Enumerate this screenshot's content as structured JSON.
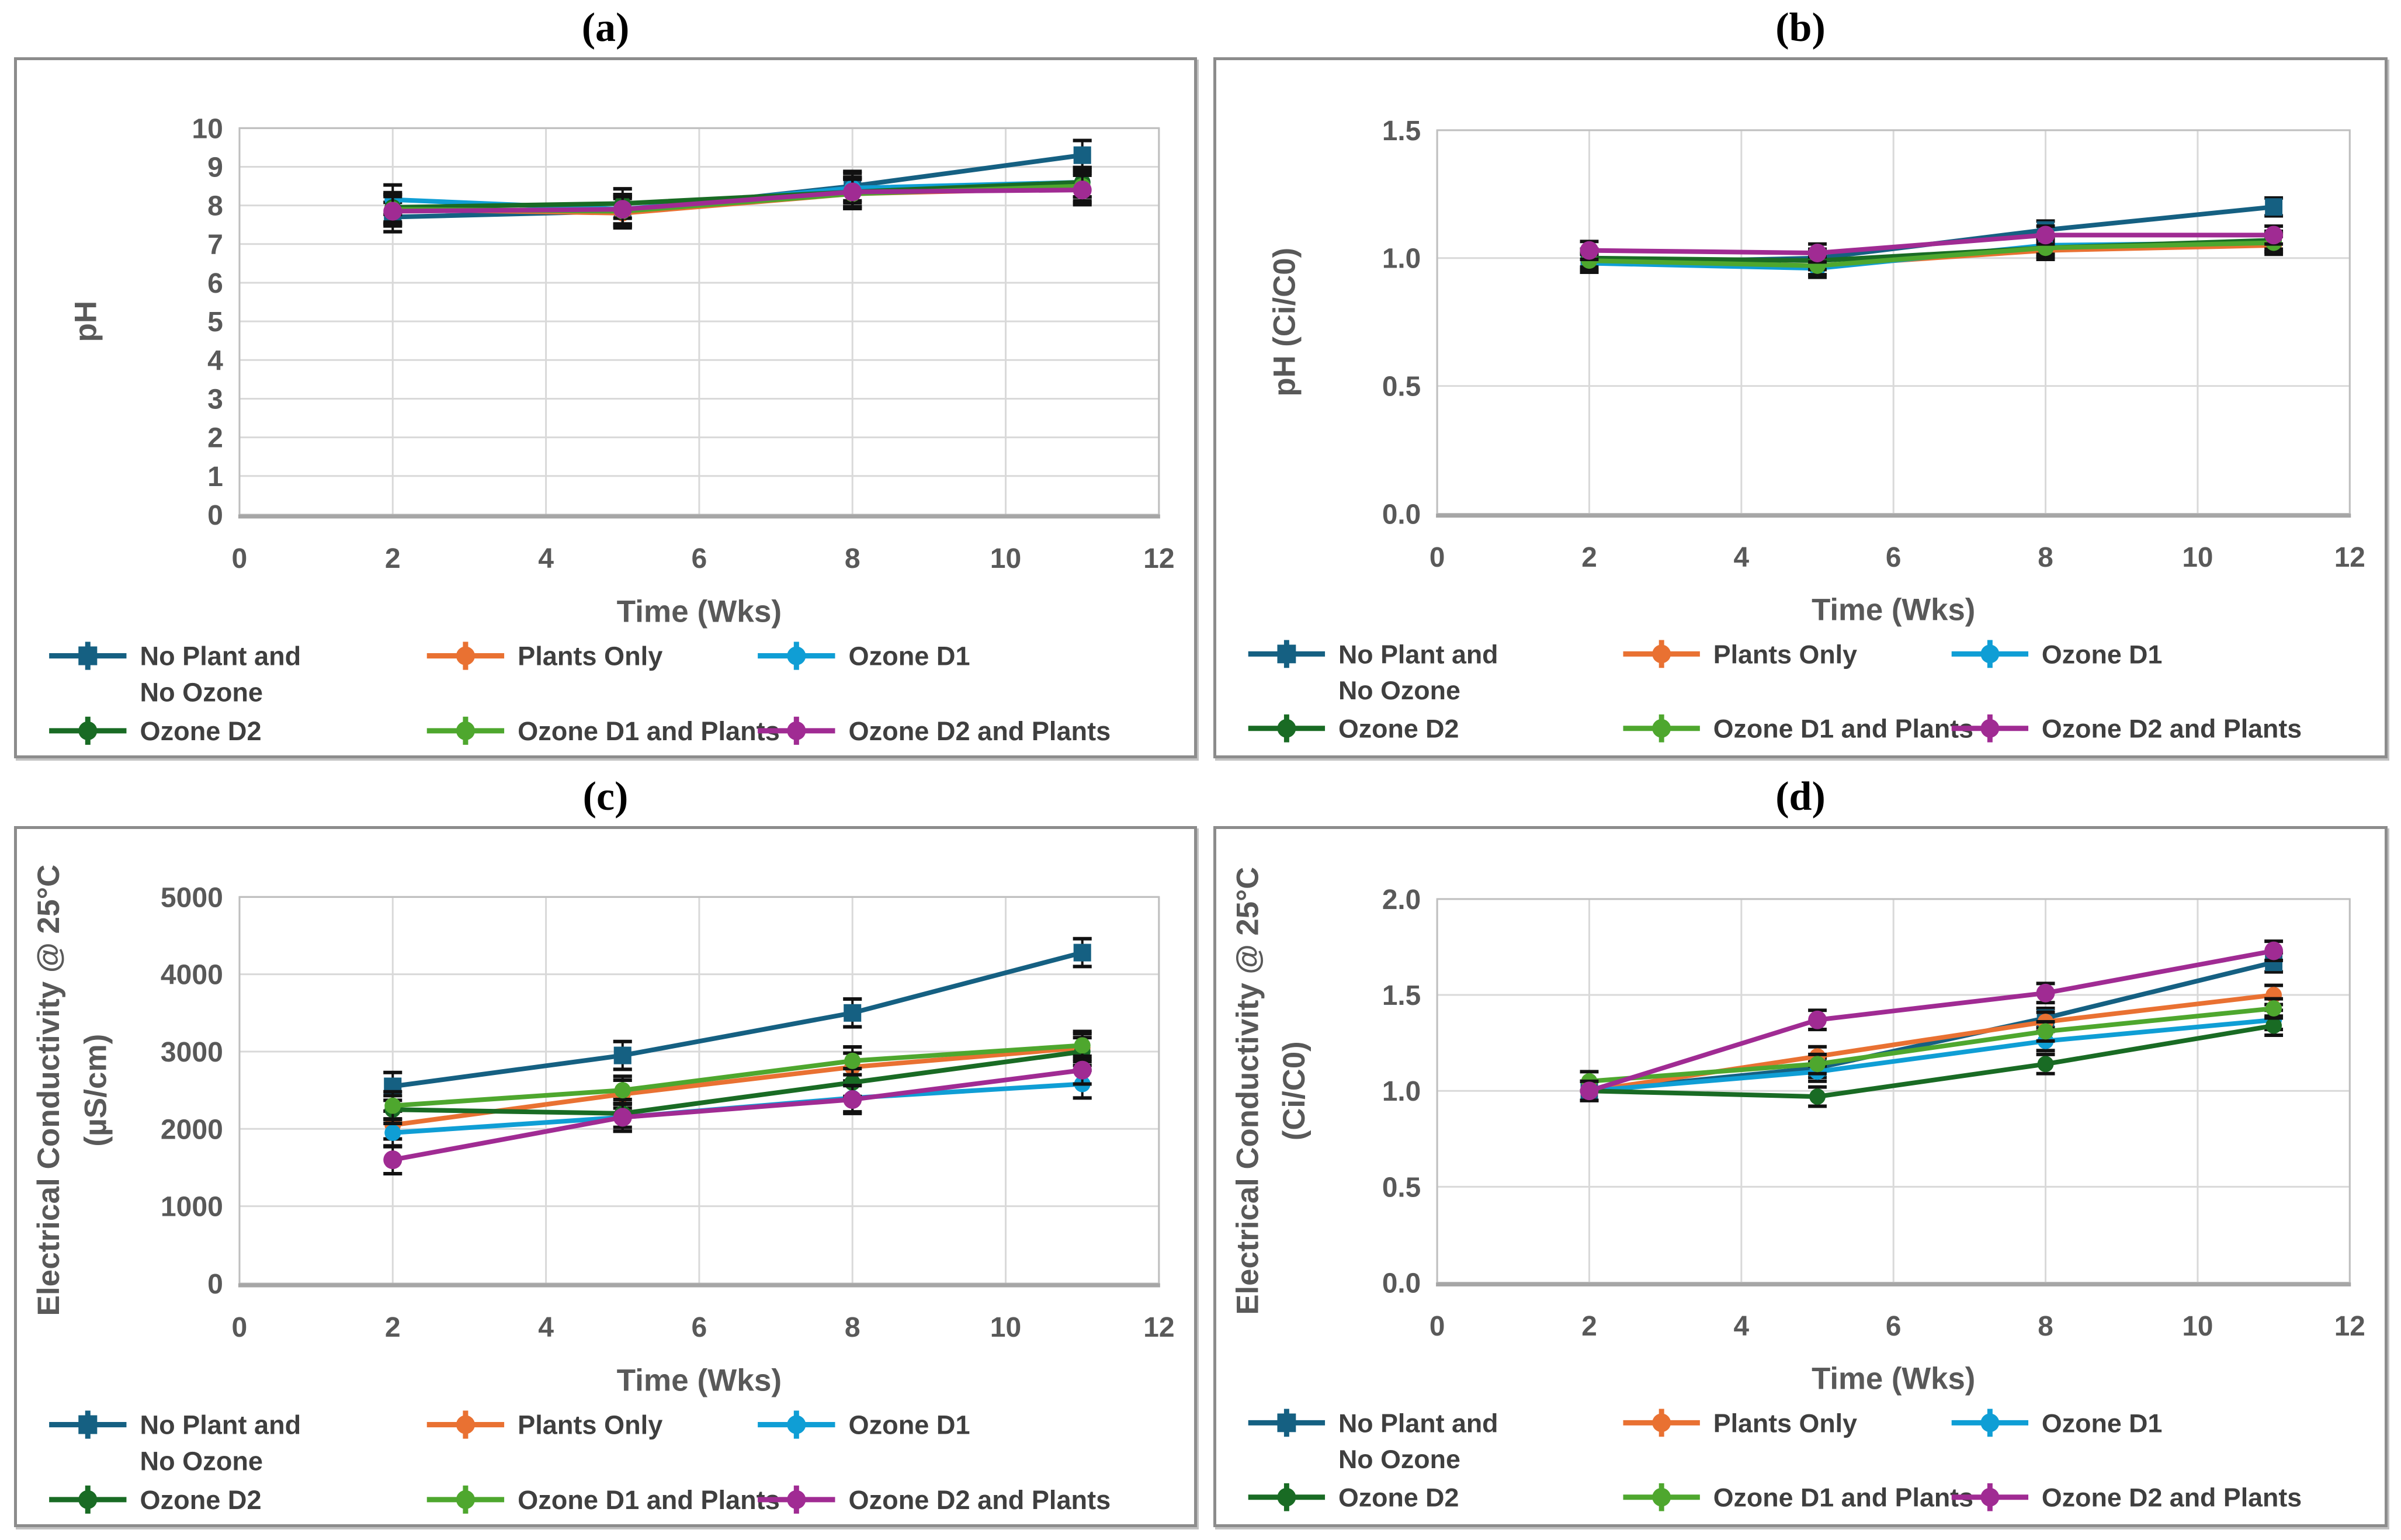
{
  "series_meta": {
    "names": [
      "No Plant and No Ozone",
      "Plants Only",
      "Ozone D1",
      "Ozone D2",
      "Ozone D1 and Plants",
      "Ozone D2 and Plants"
    ],
    "legend_label_lines": [
      [
        "No Plant and",
        "No Ozone"
      ],
      [
        "Plants Only"
      ],
      [
        "Ozone D1"
      ],
      [
        "Ozone D2"
      ],
      [
        "Ozone D1 and Plants"
      ],
      [
        "Ozone D2 and Plants"
      ]
    ],
    "colors": [
      "#156082",
      "#E97132",
      "#0F9ED5",
      "#196B24",
      "#4EA72E",
      "#A02B93"
    ],
    "markers": [
      "square",
      "circle",
      "circle",
      "circle",
      "circle",
      "circle"
    ],
    "legend_rows": [
      [
        0,
        1,
        2
      ],
      [
        3,
        4,
        5
      ]
    ],
    "error_bar_color": "#111111",
    "text_color": "#595959",
    "legend_text_color": "#3f3f3f",
    "gridline_color": "#d9d9d9",
    "plot_border_color": "#bfbfbf",
    "axis_line_color": "#a6a6a6"
  },
  "chart_data": [
    {
      "id": "a",
      "title": "(a)",
      "type": "line",
      "x": [
        2,
        5,
        8,
        11
      ],
      "xlabel": "Time (Wks)",
      "xlim": [
        0,
        12
      ],
      "xticks": [
        0,
        2,
        4,
        6,
        8,
        10,
        12
      ],
      "ylabel": "pH",
      "ylabel_lines": [
        "pH"
      ],
      "ylim": [
        0,
        10
      ],
      "yticks": [
        0,
        1,
        2,
        3,
        4,
        5,
        6,
        7,
        8,
        9,
        10
      ],
      "ytick_decimals": 0,
      "grid": true,
      "legend_position": "bottom",
      "yerr": 0.38,
      "series": [
        {
          "name": "No Plant and No Ozone",
          "values": [
            7.7,
            7.85,
            8.5,
            9.3
          ]
        },
        {
          "name": "Plants Only",
          "values": [
            7.9,
            7.8,
            8.3,
            8.45
          ]
        },
        {
          "name": "Ozone D1",
          "values": [
            8.15,
            7.9,
            8.45,
            8.6
          ]
        },
        {
          "name": "Ozone D2",
          "values": [
            7.95,
            8.05,
            8.35,
            8.6
          ]
        },
        {
          "name": "Ozone D1 and Plants",
          "values": [
            7.9,
            7.85,
            8.3,
            8.5
          ]
        },
        {
          "name": "Ozone D2 and Plants",
          "values": [
            7.85,
            7.9,
            8.35,
            8.4
          ]
        }
      ]
    },
    {
      "id": "b",
      "title": "(b)",
      "type": "line",
      "x": [
        2,
        5,
        8,
        11
      ],
      "xlabel": "Time (Wks)",
      "xlim": [
        0,
        12
      ],
      "xticks": [
        0,
        2,
        4,
        6,
        8,
        10,
        12
      ],
      "ylabel": "pH (Ci/C0)",
      "ylabel_lines": [
        "pH (Ci/C0)"
      ],
      "ylim": [
        0,
        1.5
      ],
      "yticks": [
        0,
        0.5,
        1.0,
        1.5
      ],
      "ytick_decimals": 1,
      "grid": true,
      "legend_position": "bottom",
      "yerr": 0.035,
      "series": [
        {
          "name": "No Plant and No Ozone",
          "values": [
            0.98,
            1.0,
            1.11,
            1.2
          ]
        },
        {
          "name": "Plants Only",
          "values": [
            0.99,
            0.97,
            1.03,
            1.05
          ]
        },
        {
          "name": "Ozone D1",
          "values": [
            0.98,
            0.96,
            1.05,
            1.06
          ]
        },
        {
          "name": "Ozone D2",
          "values": [
            1.0,
            0.99,
            1.04,
            1.07
          ]
        },
        {
          "name": "Ozone D1 and Plants",
          "values": [
            0.99,
            0.97,
            1.04,
            1.06
          ]
        },
        {
          "name": "Ozone D2 and Plants",
          "values": [
            1.03,
            1.02,
            1.09,
            1.09
          ]
        }
      ]
    },
    {
      "id": "c",
      "title": "(c)",
      "type": "line",
      "x": [
        2,
        5,
        8,
        11
      ],
      "xlabel": "Time (Wks)",
      "xlim": [
        0,
        12
      ],
      "xticks": [
        0,
        2,
        4,
        6,
        8,
        10,
        12
      ],
      "ylabel": "Electrical Conductivity @ 25°C (µS/cm)",
      "ylabel_lines": [
        "Electrical Conductivity @ 25°C",
        "(µS/cm)"
      ],
      "ylim": [
        0,
        5000
      ],
      "yticks": [
        0,
        1000,
        2000,
        3000,
        4000,
        5000
      ],
      "ytick_decimals": 0,
      "grid": true,
      "legend_position": "bottom",
      "yerr": 180,
      "series": [
        {
          "name": "No Plant and No Ozone",
          "values": [
            2550,
            2950,
            3500,
            4280
          ]
        },
        {
          "name": "Plants Only",
          "values": [
            2050,
            2450,
            2800,
            3050
          ]
        },
        {
          "name": "Ozone D1",
          "values": [
            1950,
            2150,
            2400,
            2580
          ]
        },
        {
          "name": "Ozone D2",
          "values": [
            2250,
            2200,
            2600,
            3000
          ]
        },
        {
          "name": "Ozone D1 and Plants",
          "values": [
            2300,
            2500,
            2880,
            3080
          ]
        },
        {
          "name": "Ozone D2 and Plants",
          "values": [
            1600,
            2150,
            2380,
            2760
          ]
        }
      ]
    },
    {
      "id": "d",
      "title": "(d)",
      "type": "line",
      "x": [
        2,
        5,
        8,
        11
      ],
      "xlabel": "Time (Wks)",
      "xlim": [
        0,
        12
      ],
      "xticks": [
        0,
        2,
        4,
        6,
        8,
        10,
        12
      ],
      "ylabel": "Electrical Conductivity @ 25°C (Ci/C0)",
      "ylabel_lines": [
        "Electrical Conductivity @ 25°C",
        "(Ci/C0)"
      ],
      "ylim": [
        0,
        2.0
      ],
      "yticks": [
        0,
        0.5,
        1.0,
        1.5,
        2.0
      ],
      "ytick_decimals": 1,
      "grid": true,
      "legend_position": "bottom",
      "yerr": 0.05,
      "series": [
        {
          "name": "No Plant and No Ozone",
          "values": [
            1.0,
            1.12,
            1.38,
            1.67
          ]
        },
        {
          "name": "Plants Only",
          "values": [
            1.0,
            1.18,
            1.36,
            1.5
          ]
        },
        {
          "name": "Ozone D1",
          "values": [
            1.0,
            1.1,
            1.26,
            1.37
          ]
        },
        {
          "name": "Ozone D2",
          "values": [
            1.0,
            0.97,
            1.14,
            1.34
          ]
        },
        {
          "name": "Ozone D1 and Plants",
          "values": [
            1.05,
            1.14,
            1.31,
            1.43
          ]
        },
        {
          "name": "Ozone D2 and Plants",
          "values": [
            1.0,
            1.37,
            1.51,
            1.73
          ]
        }
      ]
    }
  ]
}
